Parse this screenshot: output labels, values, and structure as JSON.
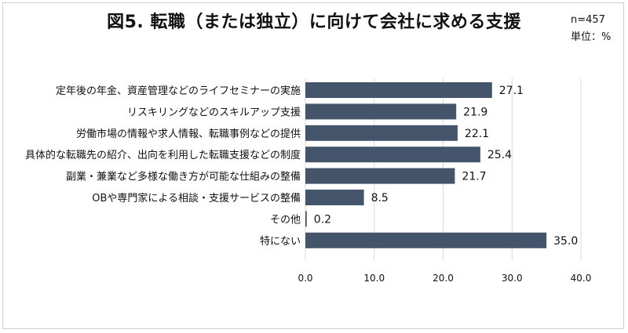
{
  "header": {
    "title": "図5. 転職（または独立）に向けて会社に求める支援",
    "sample_size": "n=457",
    "unit": "単位：%"
  },
  "colors": {
    "bar": "#44546a",
    "grid": "#d9d9d9"
  },
  "chart_data": {
    "type": "bar",
    "orientation": "horizontal",
    "title": "図5. 転職（または独立）に向けて会社に求める支援",
    "categories": [
      "定年後の年金、資産管理などのライフセミナーの実施",
      "リスキリングなどのスキルアップ支援",
      "労働市場の情報や求人情報、転職事例などの提供",
      "具体的な転職先の紹介、出向を利用した転職支援などの制度",
      "副業・兼業など多様な働き方が可能な仕組みの整備",
      "OBや専門家による相談・支援サービスの整備",
      "その他",
      "特にない"
    ],
    "values": [
      27.1,
      21.9,
      22.1,
      25.4,
      21.7,
      8.5,
      0.2,
      35.0
    ],
    "value_labels": [
      "27.1",
      "21.9",
      "22.1",
      "25.4",
      "21.7",
      "8.5",
      "0.2",
      "35.0"
    ],
    "xlim": [
      0,
      40
    ],
    "xticks": [
      0,
      10,
      20,
      30,
      40
    ],
    "xtick_labels": [
      "0.0",
      "10.0",
      "20.0",
      "30.0",
      "40.0"
    ],
    "grid": true,
    "legend": "none"
  }
}
